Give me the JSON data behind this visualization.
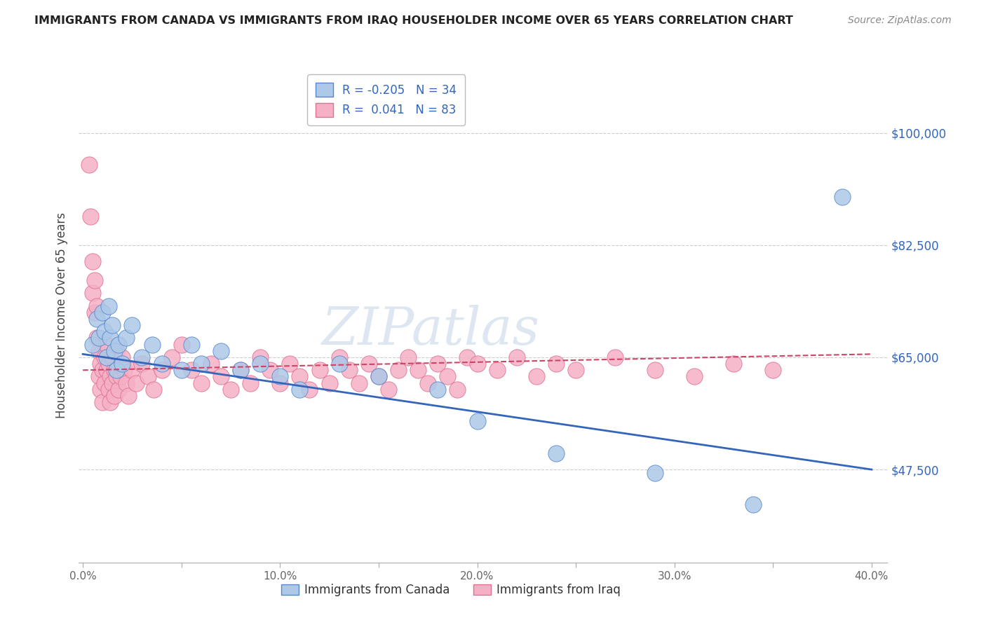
{
  "title": "IMMIGRANTS FROM CANADA VS IMMIGRANTS FROM IRAQ HOUSEHOLDER INCOME OVER 65 YEARS CORRELATION CHART",
  "source": "Source: ZipAtlas.com",
  "ylabel": "Householder Income Over 65 years",
  "xlim": [
    -0.002,
    0.408
  ],
  "ylim": [
    33000,
    110000
  ],
  "yticks": [
    47500,
    65000,
    82500,
    100000
  ],
  "ytick_labels": [
    "$47,500",
    "$65,000",
    "$82,500",
    "$100,000"
  ],
  "xticks": [
    0.0,
    0.05,
    0.1,
    0.15,
    0.2,
    0.25,
    0.3,
    0.35,
    0.4
  ],
  "xtick_labels": [
    "0.0%",
    "",
    "10.0%",
    "",
    "20.0%",
    "",
    "30.0%",
    "",
    "40.0%"
  ],
  "canada_fill": "#adc8e8",
  "iraq_fill": "#f5b0c5",
  "canada_edge": "#5588cc",
  "iraq_edge": "#e07090",
  "trend_canada": "#3366bb",
  "trend_iraq": "#cc4466",
  "R_canada": -0.205,
  "N_canada": 34,
  "R_iraq": 0.041,
  "N_iraq": 83,
  "label_canada": "Immigrants from Canada",
  "label_iraq": "Immigrants from Iraq",
  "watermark": "ZIPatlas",
  "bg": "#ffffff",
  "grid_color": "#cccccc",
  "canada_x": [
    0.005,
    0.007,
    0.008,
    0.01,
    0.011,
    0.012,
    0.013,
    0.014,
    0.015,
    0.016,
    0.017,
    0.018,
    0.02,
    0.022,
    0.025,
    0.03,
    0.035,
    0.04,
    0.05,
    0.055,
    0.06,
    0.07,
    0.08,
    0.09,
    0.1,
    0.11,
    0.13,
    0.15,
    0.18,
    0.2,
    0.24,
    0.29,
    0.34,
    0.385
  ],
  "canada_y": [
    67000,
    71000,
    68000,
    72000,
    69000,
    65000,
    73000,
    68000,
    70000,
    66000,
    63000,
    67000,
    64000,
    68000,
    70000,
    65000,
    67000,
    64000,
    63000,
    67000,
    64000,
    66000,
    63000,
    64000,
    62000,
    60000,
    64000,
    62000,
    60000,
    55000,
    50000,
    47000,
    42000,
    90000
  ],
  "iraq_x": [
    0.003,
    0.004,
    0.005,
    0.005,
    0.006,
    0.006,
    0.007,
    0.007,
    0.008,
    0.008,
    0.009,
    0.009,
    0.01,
    0.01,
    0.011,
    0.011,
    0.012,
    0.012,
    0.013,
    0.013,
    0.014,
    0.014,
    0.015,
    0.015,
    0.016,
    0.016,
    0.017,
    0.017,
    0.018,
    0.018,
    0.019,
    0.02,
    0.021,
    0.022,
    0.023,
    0.025,
    0.027,
    0.03,
    0.033,
    0.036,
    0.04,
    0.045,
    0.05,
    0.055,
    0.06,
    0.065,
    0.07,
    0.075,
    0.08,
    0.085,
    0.09,
    0.095,
    0.1,
    0.105,
    0.11,
    0.115,
    0.12,
    0.125,
    0.13,
    0.135,
    0.14,
    0.145,
    0.15,
    0.155,
    0.16,
    0.165,
    0.17,
    0.175,
    0.18,
    0.185,
    0.19,
    0.195,
    0.2,
    0.21,
    0.22,
    0.23,
    0.24,
    0.25,
    0.27,
    0.29,
    0.31,
    0.33,
    0.35
  ],
  "iraq_y": [
    95000,
    87000,
    80000,
    75000,
    72000,
    77000,
    68000,
    73000,
    62000,
    66000,
    64000,
    60000,
    63000,
    58000,
    65000,
    61000,
    67000,
    63000,
    60000,
    64000,
    62000,
    58000,
    65000,
    61000,
    63000,
    59000,
    62000,
    66000,
    60000,
    64000,
    62000,
    65000,
    63000,
    61000,
    59000,
    63000,
    61000,
    64000,
    62000,
    60000,
    63000,
    65000,
    67000,
    63000,
    61000,
    64000,
    62000,
    60000,
    63000,
    61000,
    65000,
    63000,
    61000,
    64000,
    62000,
    60000,
    63000,
    61000,
    65000,
    63000,
    61000,
    64000,
    62000,
    60000,
    63000,
    65000,
    63000,
    61000,
    64000,
    62000,
    60000,
    65000,
    64000,
    63000,
    65000,
    62000,
    64000,
    63000,
    65000,
    63000,
    62000,
    64000,
    63000
  ]
}
